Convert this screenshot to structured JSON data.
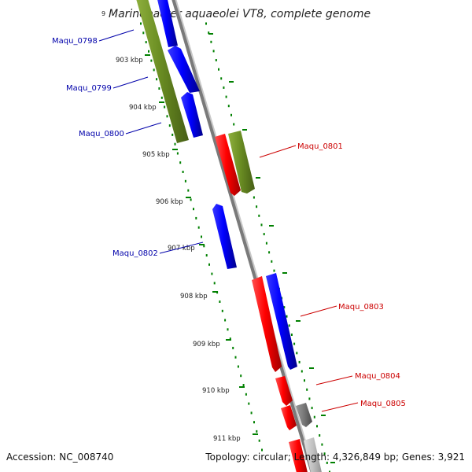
{
  "header": {
    "title_prefix": "9",
    "title": "Marinobacter aquaeolei VT8, complete genome"
  },
  "colors": {
    "forward": "#ff0000",
    "reverse": "#0000ff",
    "olive": "#6b8e23",
    "grey": "#777777",
    "light_grey": "#c0c0c0",
    "backbone": "#888888",
    "ticks": "#008000",
    "label_forward": "#cc0000",
    "label_reverse": "#0000aa"
  },
  "scale_ticks": [
    {
      "label": "903 kbp"
    },
    {
      "label": "904 kbp"
    },
    {
      "label": "905 kbp"
    },
    {
      "label": "906 kbp"
    },
    {
      "label": "907 kbp"
    },
    {
      "label": "908 kbp"
    },
    {
      "label": "909 kbp"
    },
    {
      "label": "910 kbp"
    },
    {
      "label": "911 kbp"
    }
  ],
  "gene_labels": [
    {
      "name": "Maqu_0798",
      "strand": "reverse"
    },
    {
      "name": "Maqu_0799",
      "strand": "reverse"
    },
    {
      "name": "Maqu_0800",
      "strand": "reverse"
    },
    {
      "name": "Maqu_0801",
      "strand": "forward"
    },
    {
      "name": "Maqu_0802",
      "strand": "reverse"
    },
    {
      "name": "Maqu_0803",
      "strand": "forward"
    },
    {
      "name": "Maqu_0804",
      "strand": "forward"
    },
    {
      "name": "Maqu_0805",
      "strand": "forward"
    }
  ],
  "footer": {
    "accession": "Accession: NC_008740",
    "topology": "Topology: circular; Length: 4,326,849 bp; Genes: 3,921"
  }
}
